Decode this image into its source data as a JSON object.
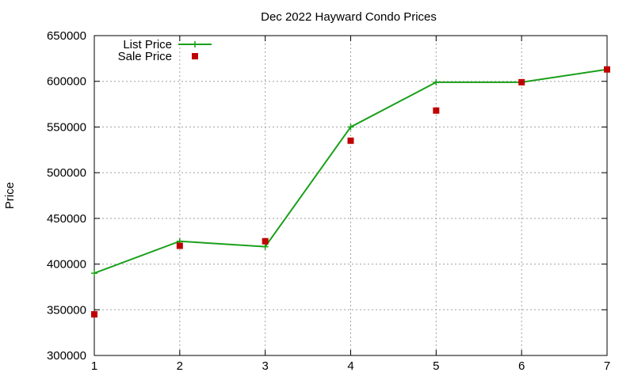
{
  "chart_data": {
    "type": "line",
    "title": "Dec 2022 Hayward Condo Prices",
    "xlabel": "",
    "ylabel": "Price",
    "xlim": [
      1,
      7
    ],
    "ylim": [
      300000,
      650000
    ],
    "x_ticks": [
      1,
      2,
      3,
      4,
      5,
      6,
      7
    ],
    "y_ticks": [
      300000,
      350000,
      400000,
      450000,
      500000,
      550000,
      600000,
      650000
    ],
    "grid": true,
    "legend_position": "top-left",
    "x": [
      1,
      2,
      3,
      4,
      5,
      6,
      7
    ],
    "series": [
      {
        "name": "List Price",
        "style": "line+cross",
        "color": "#1aa01a",
        "values": [
          390000,
          425000,
          419000,
          550000,
          599000,
          599000,
          613000
        ]
      },
      {
        "name": "Sale Price",
        "style": "square-marker",
        "color": "#c00000",
        "values": [
          345000,
          420000,
          425000,
          535000,
          568000,
          599000,
          613000
        ]
      }
    ]
  }
}
